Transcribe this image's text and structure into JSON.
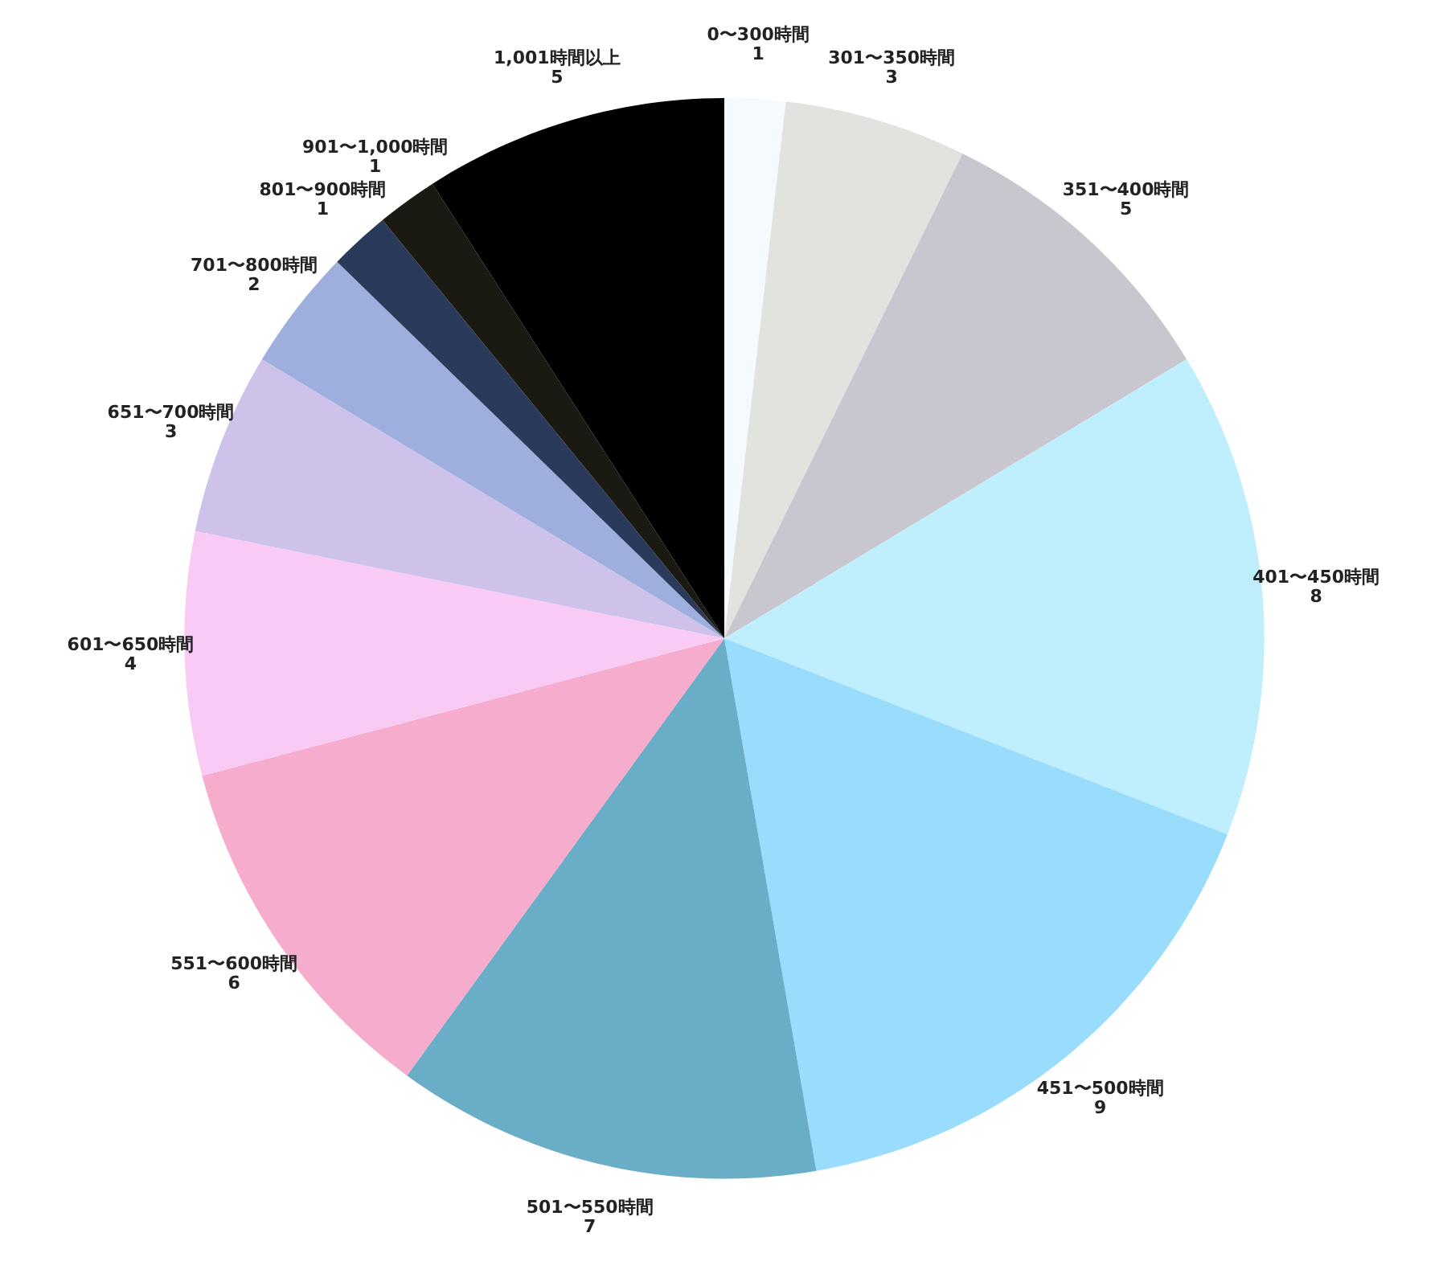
{
  "chart_data": {
    "type": "pie",
    "categories": [
      "0〜300時間",
      "301〜350時間",
      "351〜400時間",
      "401〜450時間",
      "451〜500時間",
      "501〜550時間",
      "551〜600時間",
      "601〜650時間",
      "651〜700時間",
      "701〜800時間",
      "801〜900時間",
      "901〜1,000時間",
      "1,001時間以上"
    ],
    "values": [
      1,
      3,
      5,
      8,
      9,
      7,
      6,
      4,
      3,
      2,
      1,
      1,
      5
    ],
    "colors": [
      "#f5faff",
      "#e2e3df",
      "#c8c6cf",
      "#bfeefc",
      "#9adcfc",
      "#6aadc7",
      "#f6adcd",
      "#f8caf4",
      "#cec2ea",
      "#9eafdd",
      "#293a5a",
      "#1a1912",
      "#000000"
    ],
    "data_labels": true
  }
}
